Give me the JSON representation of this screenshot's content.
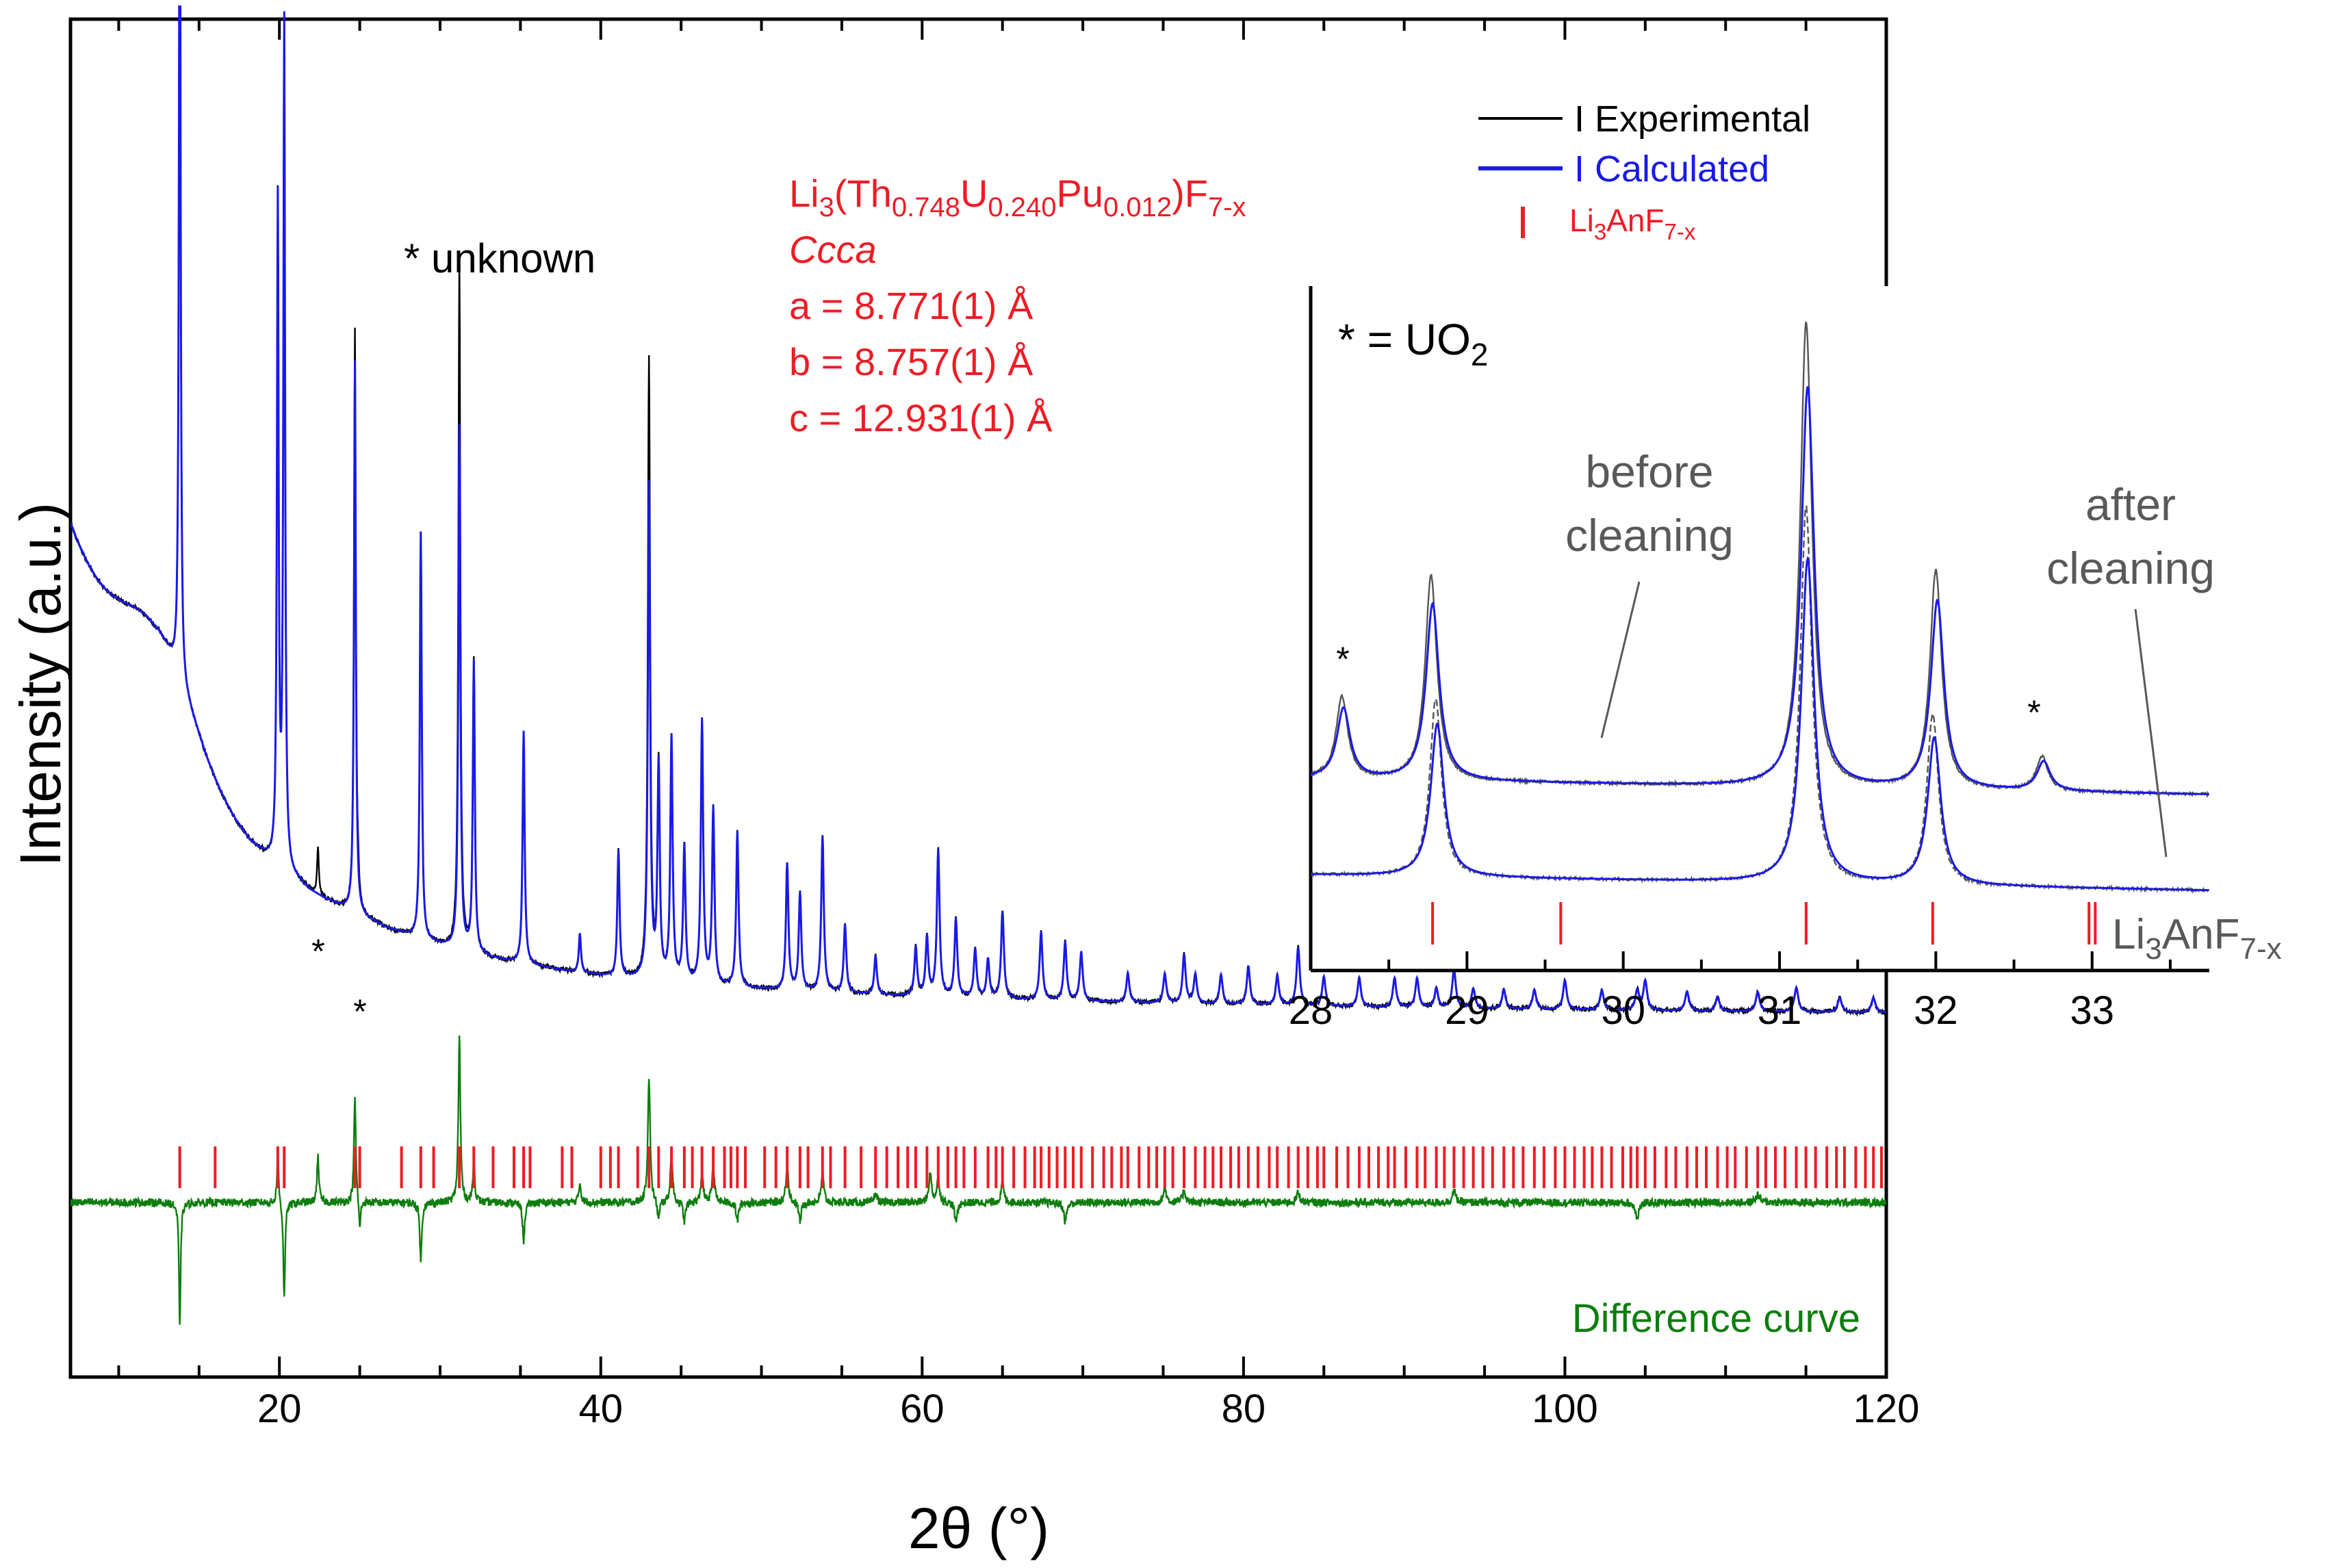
{
  "chart_data": [
    {
      "type": "line",
      "xlabel": "2θ (°)",
      "ylabel": "Intensity (a.u.)",
      "xlim": [
        7,
        120
      ],
      "ylim": [
        -0.35,
        1.05
      ],
      "xticks": [
        20,
        40,
        60,
        80,
        100,
        120
      ],
      "xtick_labels": [
        "20",
        "40",
        "60",
        "80",
        "100",
        "120"
      ],
      "legend": {
        "position": "top-right",
        "entries": [
          {
            "label": "I Experimental",
            "color": "#000000",
            "marker": "line"
          },
          {
            "label": "I Calculated",
            "color": "#1a1ae6",
            "marker": "line"
          },
          {
            "label_parts": [
              "Li",
              "3",
              "AnF",
              "7-x"
            ],
            "color": "#ee1c25",
            "marker": "tick"
          }
        ]
      },
      "annotations": {
        "unknown_note": "* unknown",
        "phase_parts": [
          "Li",
          "3",
          "(Th",
          "0.748",
          "U",
          "0.240",
          "Pu",
          "0.012",
          ")F",
          "7-x"
        ],
        "space_group": "Ccca",
        "cell_a": "a = 8.771(1) Å",
        "cell_b": "b = 8.757(1) Å",
        "cell_c": "c = 12.931(1) Å",
        "difference_label": "Difference curve",
        "star": "*"
      },
      "background": {
        "hump_center": 12.5,
        "hump_height": 0.34,
        "level_at_20": 0.23,
        "level_at_120": 0.02
      },
      "peaks": [
        {
          "x": 13.8,
          "y": 1.0
        },
        {
          "x": 19.9,
          "y": 0.68
        },
        {
          "x": 20.3,
          "y": 0.87
        },
        {
          "x": 24.7,
          "y": 0.6
        },
        {
          "x": 31.2,
          "y": 0.71
        },
        {
          "x": 28.8,
          "y": 0.42
        },
        {
          "x": 32.1,
          "y": 0.3
        },
        {
          "x": 35.2,
          "y": 0.24
        },
        {
          "x": 38.7,
          "y": 0.04
        },
        {
          "x": 41.1,
          "y": 0.13
        },
        {
          "x": 43.0,
          "y": 0.64
        },
        {
          "x": 43.6,
          "y": 0.22
        },
        {
          "x": 44.4,
          "y": 0.25
        },
        {
          "x": 45.2,
          "y": 0.14
        },
        {
          "x": 46.3,
          "y": 0.27
        },
        {
          "x": 47.0,
          "y": 0.18
        },
        {
          "x": 48.5,
          "y": 0.16
        },
        {
          "x": 51.6,
          "y": 0.13
        },
        {
          "x": 52.4,
          "y": 0.1
        },
        {
          "x": 53.8,
          "y": 0.16
        },
        {
          "x": 55.2,
          "y": 0.07
        },
        {
          "x": 57.1,
          "y": 0.04
        },
        {
          "x": 59.6,
          "y": 0.05
        },
        {
          "x": 60.3,
          "y": 0.06
        },
        {
          "x": 61.0,
          "y": 0.15
        },
        {
          "x": 62.1,
          "y": 0.08
        },
        {
          "x": 63.3,
          "y": 0.05
        },
        {
          "x": 64.1,
          "y": 0.04
        },
        {
          "x": 65.0,
          "y": 0.09
        },
        {
          "x": 67.4,
          "y": 0.07
        },
        {
          "x": 68.9,
          "y": 0.06
        },
        {
          "x": 69.9,
          "y": 0.05
        },
        {
          "x": 72.8,
          "y": 0.03
        },
        {
          "x": 75.1,
          "y": 0.03
        },
        {
          "x": 76.3,
          "y": 0.05
        },
        {
          "x": 77.0,
          "y": 0.03
        },
        {
          "x": 78.6,
          "y": 0.03
        },
        {
          "x": 80.3,
          "y": 0.04
        },
        {
          "x": 82.1,
          "y": 0.03
        },
        {
          "x": 83.4,
          "y": 0.06
        },
        {
          "x": 85.0,
          "y": 0.03
        },
        {
          "x": 87.2,
          "y": 0.03
        },
        {
          "x": 89.4,
          "y": 0.03
        },
        {
          "x": 90.8,
          "y": 0.03
        },
        {
          "x": 92.0,
          "y": 0.02
        },
        {
          "x": 93.1,
          "y": 0.04
        },
        {
          "x": 94.3,
          "y": 0.02
        },
        {
          "x": 96.2,
          "y": 0.02
        },
        {
          "x": 98.1,
          "y": 0.02
        },
        {
          "x": 100.0,
          "y": 0.03
        },
        {
          "x": 102.3,
          "y": 0.02
        },
        {
          "x": 104.5,
          "y": 0.02
        },
        {
          "x": 105.0,
          "y": 0.03
        },
        {
          "x": 107.6,
          "y": 0.02
        },
        {
          "x": 109.5,
          "y": 0.015
        },
        {
          "x": 112.0,
          "y": 0.02
        },
        {
          "x": 114.4,
          "y": 0.025
        },
        {
          "x": 117.1,
          "y": 0.015
        },
        {
          "x": 119.2,
          "y": 0.015
        }
      ],
      "unknown_peaks": [
        {
          "x": 22.4,
          "y": 0.05
        },
        {
          "x": 24.9,
          "y": 0.02
        }
      ],
      "calc_deficit": [
        {
          "x": 24.7,
          "y": 0.03
        },
        {
          "x": 31.2,
          "y": 0.17
        },
        {
          "x": 43.0,
          "y": 0.13
        }
      ],
      "reflection_ticks": [
        13.8,
        16.0,
        19.9,
        20.3,
        24.7,
        25.0,
        27.6,
        28.8,
        29.6,
        31.2,
        32.1,
        33.3,
        34.6,
        35.2,
        35.6,
        37.6,
        38.2,
        40.0,
        40.6,
        41.1,
        42.3,
        43.0,
        43.6,
        44.4,
        45.2,
        45.7,
        46.3,
        47.0,
        47.7,
        48.1,
        48.5,
        49.0,
        50.2,
        50.9,
        51.6,
        52.4,
        52.9,
        53.8,
        54.3,
        55.2,
        56.2,
        57.1,
        57.8,
        58.5,
        59.1,
        59.6,
        60.3,
        61.0,
        61.6,
        62.1,
        62.6,
        63.3,
        64.1,
        64.6,
        65.0,
        65.7,
        66.4,
        67.0,
        67.4,
        67.9,
        68.4,
        68.9,
        69.4,
        69.9,
        70.6,
        71.3,
        71.8,
        72.4,
        72.8,
        73.5,
        74.1,
        74.6,
        75.1,
        75.6,
        76.3,
        77.0,
        77.6,
        78.1,
        78.6,
        79.2,
        79.7,
        80.3,
        80.9,
        81.6,
        82.1,
        82.8,
        83.4,
        84.0,
        84.6,
        85.0,
        85.8,
        86.5,
        87.2,
        87.8,
        88.4,
        89.0,
        89.4,
        90.1,
        90.8,
        91.3,
        92.0,
        92.5,
        93.1,
        93.7,
        94.3,
        94.9,
        95.5,
        96.2,
        96.8,
        97.4,
        98.1,
        98.7,
        99.4,
        100.0,
        100.6,
        101.2,
        101.7,
        102.3,
        102.9,
        103.6,
        104.1,
        104.5,
        105.0,
        105.6,
        106.3,
        106.9,
        107.6,
        108.2,
        108.8,
        109.5,
        110.1,
        110.6,
        111.3,
        112.0,
        112.5,
        113.1,
        113.7,
        114.4,
        115.0,
        115.6,
        116.3,
        116.9,
        117.4,
        118.1,
        118.7,
        119.2,
        119.7
      ],
      "difference_spikes": [
        {
          "x": 13.8,
          "y": -0.13
        },
        {
          "x": 19.9,
          "y": 0.05
        },
        {
          "x": 20.3,
          "y": -0.1
        },
        {
          "x": 22.4,
          "y": 0.05
        },
        {
          "x": 24.7,
          "y": 0.11
        },
        {
          "x": 25.0,
          "y": -0.03
        },
        {
          "x": 28.8,
          "y": -0.06
        },
        {
          "x": 31.2,
          "y": 0.17
        },
        {
          "x": 32.1,
          "y": 0.04
        },
        {
          "x": 35.2,
          "y": -0.04
        },
        {
          "x": 38.7,
          "y": 0.02
        },
        {
          "x": 43.0,
          "y": 0.13
        },
        {
          "x": 43.6,
          "y": -0.02
        },
        {
          "x": 44.4,
          "y": 0.05
        },
        {
          "x": 45.2,
          "y": -0.02
        },
        {
          "x": 46.3,
          "y": 0.03
        },
        {
          "x": 47.0,
          "y": 0.04
        },
        {
          "x": 48.5,
          "y": -0.02
        },
        {
          "x": 51.6,
          "y": 0.04
        },
        {
          "x": 52.4,
          "y": -0.02
        },
        {
          "x": 53.8,
          "y": 0.03
        },
        {
          "x": 57.1,
          "y": 0.01
        },
        {
          "x": 60.5,
          "y": 0.03
        },
        {
          "x": 61.0,
          "y": 0.025
        },
        {
          "x": 62.1,
          "y": -0.02
        },
        {
          "x": 65.0,
          "y": 0.02
        },
        {
          "x": 68.9,
          "y": -0.02
        },
        {
          "x": 75.1,
          "y": 0.015
        },
        {
          "x": 76.3,
          "y": 0.012
        },
        {
          "x": 83.4,
          "y": 0.01
        },
        {
          "x": 93.1,
          "y": 0.012
        },
        {
          "x": 104.5,
          "y": -0.015
        },
        {
          "x": 112.0,
          "y": 0.008
        }
      ]
    },
    {
      "type": "line",
      "title": "* = UO",
      "title_sub": "2",
      "xlim": [
        28,
        33.75
      ],
      "xticks": [
        28,
        29,
        30,
        31,
        32,
        33
      ],
      "xtick_labels": [
        "28",
        "29",
        "30",
        "31",
        "32",
        "33"
      ],
      "ylim": [
        0,
        1.0
      ],
      "series": [
        {
          "name": "before cleaning",
          "baseline": 0.28,
          "peaks": [
            {
              "x": 28.2,
              "y": 0.12
            },
            {
              "x": 28.77,
              "y": 0.3
            },
            {
              "x": 31.17,
              "y": 0.68
            },
            {
              "x": 32.0,
              "y": 0.32
            },
            {
              "x": 32.68,
              "y": 0.05
            }
          ]
        },
        {
          "name": "after cleaning",
          "baseline": 0.14,
          "peaks": [
            {
              "x": 28.8,
              "y": 0.26
            },
            {
              "x": 31.17,
              "y": 0.55
            },
            {
              "x": 31.98,
              "y": 0.25
            }
          ]
        }
      ],
      "reflection_ticks": [
        28.78,
        29.6,
        31.17,
        31.98,
        32.98,
        33.02
      ],
      "annotations": {
        "before_line1": "before",
        "before_line2": "cleaning",
        "after_line1": "after",
        "after_line2": "cleaning",
        "star": "*",
        "phase_parts": [
          "Li",
          "3",
          "AnF",
          "7-x"
        ]
      }
    }
  ],
  "colors": {
    "experimental": "#000000",
    "calculated": "#1a1ae6",
    "ticks": "#ee1c25",
    "difference": "#0e7d0e",
    "label_gray": "#595959"
  }
}
